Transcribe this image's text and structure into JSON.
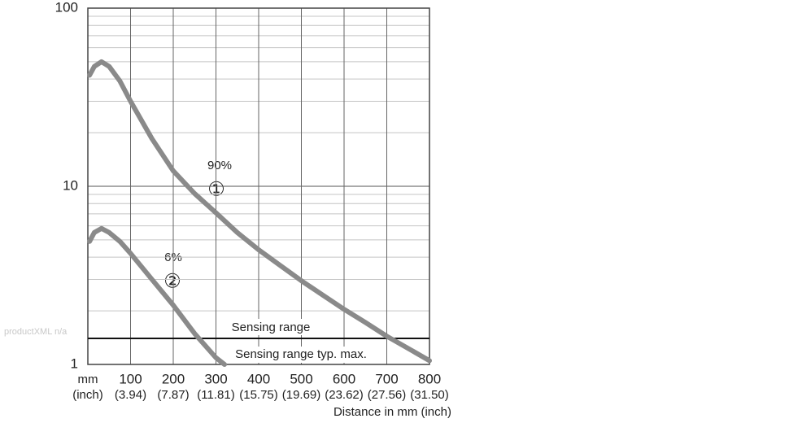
{
  "chart_data": {
    "type": "line",
    "x_label": "Distance in mm (inch)",
    "x_unit_label": "mm",
    "x_unit_sublabel": "(inch)",
    "xlim": [
      0,
      800
    ],
    "xticks": [
      100,
      200,
      300,
      400,
      500,
      600,
      700,
      800
    ],
    "xtick_sublabels": [
      "(3.94)",
      "(7.87)",
      "(11.81)",
      "(15.75)",
      "(19.69)",
      "(23.62)",
      "(27.56)",
      "(31.50)"
    ],
    "ylim": [
      1,
      100
    ],
    "yticks": [
      1,
      10,
      100
    ],
    "y_minor_ticks": [
      2,
      3,
      4,
      5,
      6,
      7,
      8,
      9,
      20,
      30,
      40,
      50,
      60,
      70,
      80,
      90
    ],
    "log_y": true,
    "grid": true,
    "series": [
      {
        "name": "90%",
        "marker": "①",
        "color": "#8a8a8a",
        "x": [
          4,
          15,
          32,
          50,
          75,
          100,
          150,
          200,
          250,
          300,
          350,
          400,
          450,
          500,
          550,
          600,
          650,
          700,
          750,
          800
        ],
        "values": [
          42,
          47,
          50,
          47,
          39,
          30,
          18.5,
          12.2,
          9.1,
          7.1,
          5.5,
          4.4,
          3.6,
          2.95,
          2.45,
          2.04,
          1.72,
          1.44,
          1.23,
          1.05
        ]
      },
      {
        "name": "6%",
        "marker": "②",
        "color": "#8a8a8a",
        "x": [
          4,
          15,
          32,
          50,
          75,
          100,
          150,
          200,
          250,
          300,
          320
        ],
        "values": [
          4.9,
          5.5,
          5.8,
          5.5,
          4.9,
          4.2,
          3.0,
          2.15,
          1.49,
          1.09,
          1.0
        ]
      }
    ],
    "reference_line": {
      "value": 1.4,
      "label_above": "Sensing range",
      "label_below": "Sensing range typ. max."
    },
    "watermark": "productXML n/a"
  }
}
